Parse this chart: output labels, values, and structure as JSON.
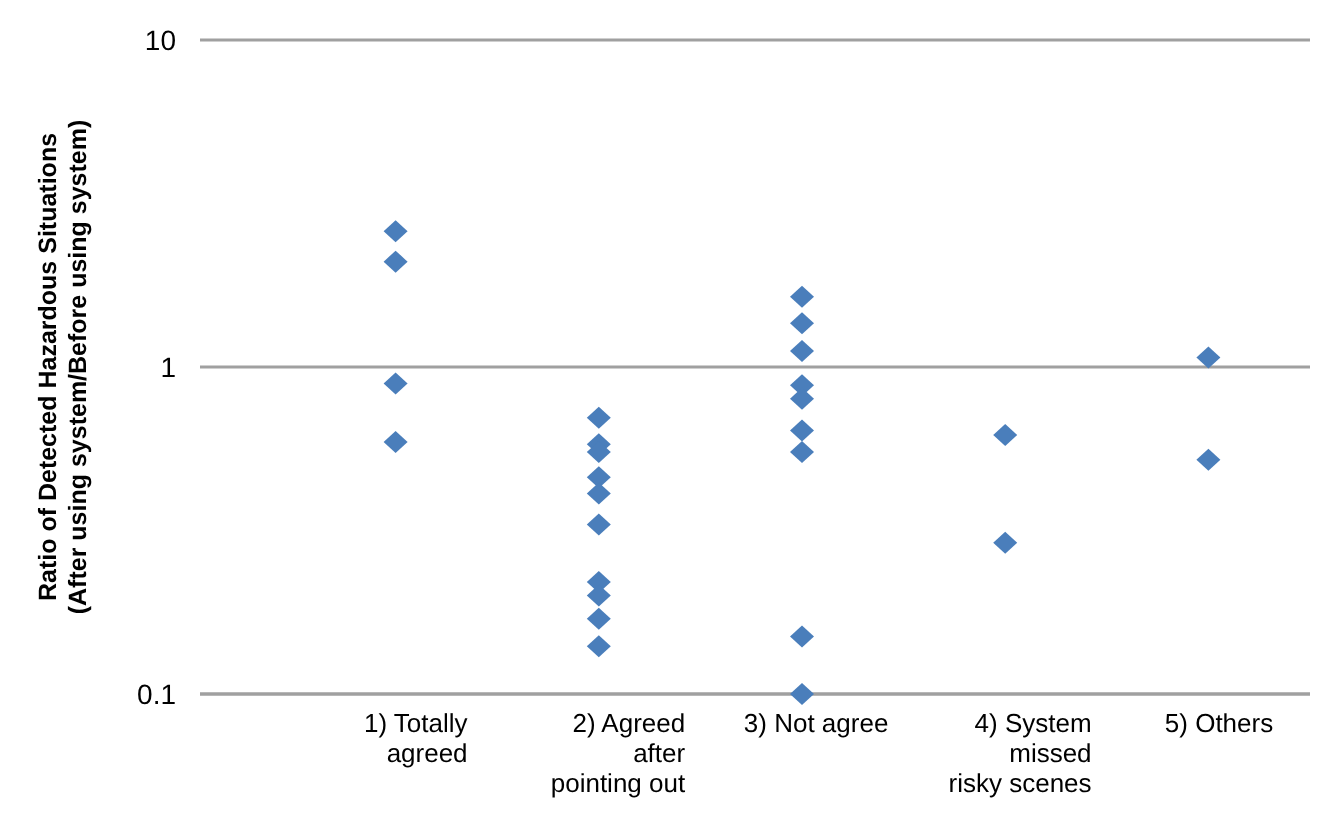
{
  "chart_data": {
    "type": "scatter",
    "ylabel": "Ratio of Detected Hazardous Situations\n(After using system/Before using system)",
    "categories": [
      "1) Totally\nagreed",
      "2) Agreed\nafter\npointing out",
      "3) Not agree",
      "4) System\nmissed\nrisky scenes",
      "5) Others"
    ],
    "series": [
      {
        "color": "#4a7ebb",
        "x": [
          "1) Totally\nagreed",
          "1) Totally\nagreed",
          "1) Totally\nagreed",
          "1) Totally\nagreed",
          "2) Agreed\nafter\npointing out",
          "2) Agreed\nafter\npointing out",
          "2) Agreed\nafter\npointing out",
          "2) Agreed\nafter\npointing out",
          "2) Agreed\nafter\npointing out",
          "2) Agreed\nafter\npointing out",
          "2) Agreed\nafter\npointing out",
          "2) Agreed\nafter\npointing out",
          "2) Agreed\nafter\npointing out",
          "2) Agreed\nafter\npointing out",
          "3) Not agree",
          "3) Not agree",
          "3) Not agree",
          "3) Not agree",
          "3) Not agree",
          "3) Not agree",
          "3) Not agree",
          "3) Not agree",
          "3) Not agree",
          "4) System\nmissed\nrisky scenes",
          "4) System\nmissed\nrisky scenes",
          "5) Others",
          "5) Others"
        ],
        "values": [
          2.6,
          2.1,
          0.89,
          0.59,
          0.7,
          0.58,
          0.55,
          0.46,
          0.41,
          0.33,
          0.22,
          0.2,
          0.17,
          0.14,
          1.64,
          1.36,
          1.12,
          0.88,
          0.8,
          0.64,
          0.55,
          0.15,
          0.1,
          0.62,
          0.29,
          1.07,
          0.52
        ]
      }
    ],
    "log": "y",
    "ylim": [
      0.1,
      10
    ],
    "yticks": [
      0.1,
      1,
      10
    ],
    "grid": "y",
    "marker": "diamond"
  }
}
